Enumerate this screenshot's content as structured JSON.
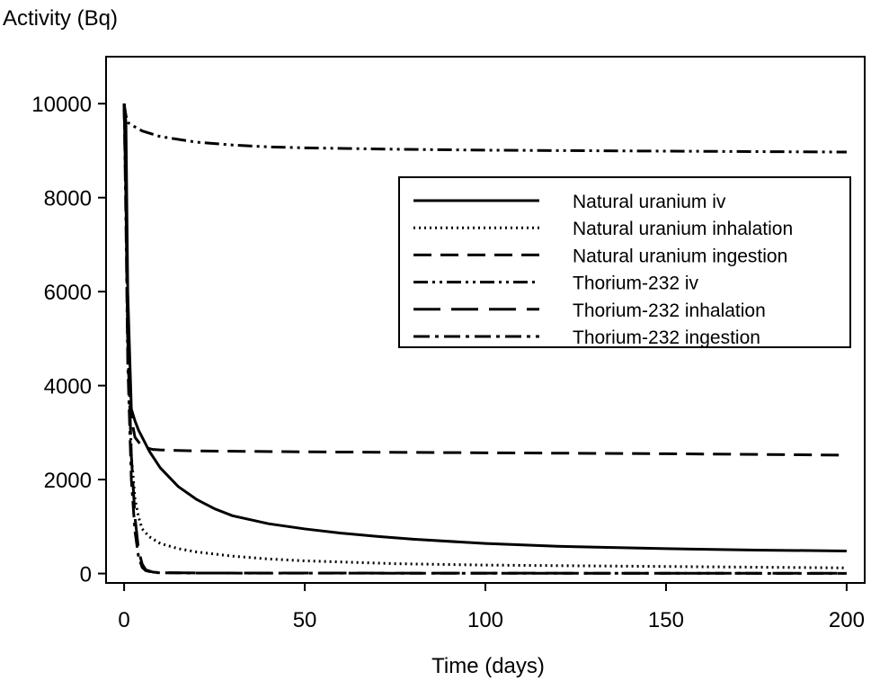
{
  "chart_data": {
    "type": "line",
    "title": "",
    "xlabel": "Time (days)",
    "ylabel": "Activity (Bq)",
    "xlim": [
      -5,
      205
    ],
    "ylim": [
      -200,
      11000
    ],
    "xticks": [
      0,
      50,
      100,
      150,
      200
    ],
    "yticks": [
      0,
      2000,
      4000,
      6000,
      8000,
      10000
    ],
    "grid": false,
    "legend_position": "upper-right",
    "series": [
      {
        "name": "Natural uranium iv",
        "dash": "solid",
        "x": [
          0,
          0.5,
          1,
          2,
          3,
          4,
          5,
          7,
          10,
          15,
          20,
          25,
          30,
          40,
          50,
          60,
          70,
          80,
          100,
          120,
          150,
          175,
          200
        ],
        "y": [
          10000,
          9600,
          6000,
          3500,
          3250,
          3050,
          2900,
          2600,
          2250,
          1850,
          1580,
          1380,
          1230,
          1060,
          950,
          860,
          790,
          730,
          640,
          580,
          530,
          500,
          480
        ]
      },
      {
        "name": "Natural uranium inhalation",
        "dash": "dotted",
        "x": [
          0,
          0.5,
          1,
          2,
          3,
          4,
          5,
          7,
          10,
          15,
          20,
          30,
          40,
          50,
          75,
          100,
          150,
          200
        ],
        "y": [
          10000,
          8500,
          5000,
          2500,
          1600,
          1200,
          950,
          780,
          640,
          530,
          460,
          370,
          310,
          270,
          210,
          180,
          150,
          120
        ]
      },
      {
        "name": "Natural uranium ingestion",
        "dash": "dashed",
        "x": [
          0,
          0.5,
          1,
          1.5,
          2,
          3,
          5,
          8,
          10,
          20,
          50,
          100,
          150,
          200
        ],
        "y": [
          10000,
          8000,
          4800,
          3800,
          3300,
          2900,
          2700,
          2640,
          2630,
          2610,
          2590,
          2570,
          2550,
          2520
        ]
      },
      {
        "name": "Thorium-232 iv",
        "dash": "dash-dot-dot",
        "x": [
          0,
          0.5,
          1,
          2,
          5,
          10,
          20,
          30,
          40,
          50,
          75,
          100,
          150,
          200
        ],
        "y": [
          10000,
          9750,
          9600,
          9550,
          9420,
          9300,
          9180,
          9120,
          9080,
          9060,
          9030,
          9010,
          8990,
          8970
        ]
      },
      {
        "name": "Thorium-232 inhalation",
        "dash": "long-dash",
        "x": [
          0,
          0.5,
          1,
          2,
          3,
          4,
          5,
          6,
          8,
          10,
          20,
          50,
          100,
          150,
          200
        ],
        "y": [
          10000,
          8000,
          5000,
          2500,
          1200,
          500,
          200,
          80,
          30,
          20,
          12,
          10,
          8,
          6,
          5
        ]
      },
      {
        "name": "Thorium-232 ingestion",
        "dash": "dash-dot",
        "x": [
          0,
          0.5,
          1,
          2,
          3,
          4,
          5,
          6,
          8,
          10,
          20,
          50,
          100,
          150,
          200
        ],
        "y": [
          10000,
          7500,
          4500,
          2000,
          900,
          350,
          130,
          60,
          25,
          15,
          10,
          8,
          6,
          5,
          4
        ]
      }
    ]
  }
}
